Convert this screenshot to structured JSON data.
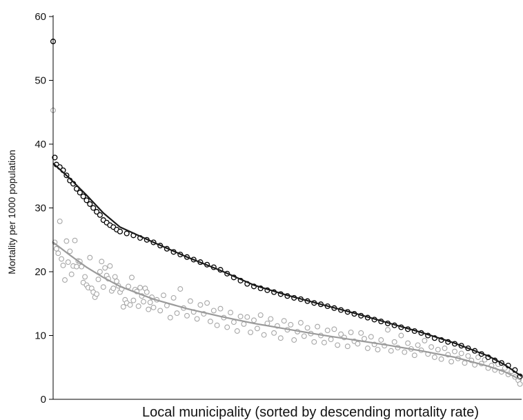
{
  "chart_data": {
    "type": "scatter",
    "title": "",
    "xlabel": "Local municipality (sorted by descending mortality rate)",
    "ylabel": "Mortality per 1000 population",
    "ylim": [
      0,
      60
    ],
    "yticks": [
      0,
      10,
      20,
      30,
      40,
      50,
      60
    ],
    "ytick_labels": [
      "0",
      "10",
      "20",
      "30",
      "40",
      "50",
      "60"
    ],
    "xlim": [
      0,
      280
    ],
    "grid": false,
    "legend": "none",
    "series": [
      {
        "marker": "open-circle",
        "color": "#000000",
        "points": [
          [
            0,
            56.1
          ],
          [
            1,
            37.9
          ],
          [
            2,
            36.8
          ],
          [
            4,
            36.4
          ],
          [
            6,
            35.9
          ],
          [
            8,
            35.1
          ],
          [
            10,
            34.3
          ],
          [
            12,
            33.8
          ],
          [
            14,
            33.0
          ],
          [
            16,
            32.4
          ],
          [
            18,
            31.8
          ],
          [
            20,
            31.2
          ],
          [
            22,
            30.6
          ],
          [
            24,
            30.0
          ],
          [
            26,
            29.4
          ],
          [
            28,
            28.9
          ],
          [
            30,
            28.1
          ],
          [
            32,
            27.7
          ],
          [
            34,
            27.3
          ],
          [
            36,
            27.0
          ],
          [
            38,
            26.6
          ],
          [
            40,
            26.3
          ],
          [
            44,
            26.0
          ],
          [
            48,
            25.7
          ],
          [
            52,
            25.3
          ],
          [
            56,
            25.0
          ],
          [
            60,
            24.6
          ],
          [
            64,
            24.1
          ],
          [
            68,
            23.6
          ],
          [
            72,
            23.1
          ],
          [
            76,
            22.7
          ],
          [
            80,
            22.3
          ],
          [
            84,
            21.9
          ],
          [
            88,
            21.5
          ],
          [
            92,
            21.1
          ],
          [
            96,
            20.7
          ],
          [
            100,
            20.3
          ],
          [
            104,
            19.7
          ],
          [
            108,
            19.1
          ],
          [
            112,
            18.6
          ],
          [
            116,
            18.1
          ],
          [
            120,
            17.7
          ],
          [
            124,
            17.4
          ],
          [
            128,
            17.1
          ],
          [
            132,
            16.8
          ],
          [
            136,
            16.5
          ],
          [
            140,
            16.2
          ],
          [
            144,
            15.9
          ],
          [
            148,
            15.7
          ],
          [
            152,
            15.4
          ],
          [
            156,
            15.1
          ],
          [
            160,
            14.9
          ],
          [
            164,
            14.6
          ],
          [
            168,
            14.3
          ],
          [
            172,
            14.0
          ],
          [
            176,
            13.7
          ],
          [
            180,
            13.4
          ],
          [
            184,
            13.1
          ],
          [
            188,
            12.8
          ],
          [
            192,
            12.5
          ],
          [
            196,
            12.2
          ],
          [
            200,
            11.9
          ],
          [
            204,
            11.6
          ],
          [
            208,
            11.3
          ],
          [
            212,
            11.0
          ],
          [
            216,
            10.7
          ],
          [
            220,
            10.4
          ],
          [
            224,
            10.0
          ],
          [
            228,
            9.6
          ],
          [
            232,
            9.3
          ],
          [
            236,
            9.0
          ],
          [
            240,
            8.7
          ],
          [
            244,
            8.4
          ],
          [
            248,
            8.0
          ],
          [
            252,
            7.6
          ],
          [
            256,
            7.1
          ],
          [
            260,
            6.6
          ],
          [
            264,
            6.1
          ],
          [
            268,
            5.7
          ],
          [
            272,
            5.3
          ],
          [
            276,
            4.6
          ],
          [
            279,
            3.6
          ]
        ],
        "trend": [
          [
            0,
            37.0
          ],
          [
            10,
            34.6
          ],
          [
            20,
            32.0
          ],
          [
            30,
            29.2
          ],
          [
            40,
            27.0
          ],
          [
            50,
            25.8
          ],
          [
            60,
            24.6
          ],
          [
            80,
            22.3
          ],
          [
            100,
            20.2
          ],
          [
            120,
            17.9
          ],
          [
            140,
            16.3
          ],
          [
            160,
            14.9
          ],
          [
            180,
            13.5
          ],
          [
            200,
            12.0
          ],
          [
            220,
            10.5
          ],
          [
            240,
            8.8
          ],
          [
            260,
            6.8
          ],
          [
            270,
            5.4
          ],
          [
            280,
            3.6
          ]
        ]
      },
      {
        "marker": "open-circle",
        "color": "#a6a6a6",
        "points": [
          [
            0,
            45.3
          ],
          [
            1,
            24.6
          ],
          [
            2,
            23.6
          ],
          [
            3,
            22.9
          ],
          [
            4,
            27.9
          ],
          [
            5,
            22.0
          ],
          [
            6,
            21.0
          ],
          [
            7,
            18.7
          ],
          [
            8,
            24.8
          ],
          [
            9,
            21.5
          ],
          [
            10,
            23.2
          ],
          [
            11,
            19.6
          ],
          [
            12,
            20.9
          ],
          [
            13,
            24.9
          ],
          [
            14,
            20.8
          ],
          [
            15,
            21.7
          ],
          [
            16,
            21.6
          ],
          [
            17,
            20.8
          ],
          [
            18,
            18.3
          ],
          [
            19,
            19.2
          ],
          [
            20,
            17.9
          ],
          [
            21,
            17.5
          ],
          [
            22,
            22.2
          ],
          [
            23,
            17.4
          ],
          [
            24,
            16.8
          ],
          [
            25,
            16.0
          ],
          [
            26,
            16.5
          ],
          [
            27,
            18.8
          ],
          [
            28,
            20.0
          ],
          [
            29,
            21.6
          ],
          [
            30,
            17.6
          ],
          [
            31,
            20.6
          ],
          [
            32,
            19.4
          ],
          [
            33,
            18.9
          ],
          [
            34,
            20.9
          ],
          [
            35,
            17.0
          ],
          [
            36,
            17.4
          ],
          [
            37,
            19.2
          ],
          [
            38,
            18.5
          ],
          [
            39,
            17.8
          ],
          [
            40,
            16.8
          ],
          [
            41,
            17.3
          ],
          [
            42,
            14.5
          ],
          [
            43,
            15.6
          ],
          [
            44,
            15.1
          ],
          [
            45,
            17.7
          ],
          [
            46,
            14.8
          ],
          [
            47,
            19.1
          ],
          [
            48,
            15.5
          ],
          [
            49,
            17.2
          ],
          [
            50,
            16.9
          ],
          [
            51,
            14.6
          ],
          [
            52,
            17.5
          ],
          [
            53,
            16.2
          ],
          [
            54,
            15.3
          ],
          [
            55,
            17.4
          ],
          [
            56,
            16.8
          ],
          [
            57,
            14.1
          ],
          [
            58,
            15.2
          ],
          [
            59,
            16.0
          ],
          [
            60,
            14.4
          ],
          [
            62,
            15.6
          ],
          [
            64,
            13.9
          ],
          [
            66,
            16.3
          ],
          [
            68,
            14.7
          ],
          [
            70,
            12.8
          ],
          [
            72,
            15.9
          ],
          [
            74,
            13.5
          ],
          [
            76,
            17.3
          ],
          [
            78,
            14.3
          ],
          [
            80,
            13.1
          ],
          [
            82,
            15.4
          ],
          [
            84,
            13.7
          ],
          [
            86,
            12.6
          ],
          [
            88,
            14.8
          ],
          [
            90,
            13.4
          ],
          [
            92,
            15.1
          ],
          [
            94,
            12.2
          ],
          [
            96,
            13.9
          ],
          [
            98,
            11.6
          ],
          [
            100,
            14.2
          ],
          [
            102,
            12.8
          ],
          [
            104,
            11.3
          ],
          [
            106,
            13.6
          ],
          [
            108,
            12.1
          ],
          [
            110,
            10.7
          ],
          [
            112,
            13.0
          ],
          [
            114,
            11.8
          ],
          [
            116,
            12.9
          ],
          [
            118,
            10.5
          ],
          [
            120,
            12.4
          ],
          [
            122,
            11.1
          ],
          [
            124,
            13.2
          ],
          [
            126,
            10.1
          ],
          [
            128,
            11.9
          ],
          [
            130,
            12.6
          ],
          [
            132,
            10.4
          ],
          [
            134,
            11.5
          ],
          [
            136,
            9.6
          ],
          [
            138,
            12.3
          ],
          [
            140,
            10.9
          ],
          [
            142,
            11.7
          ],
          [
            144,
            9.3
          ],
          [
            146,
            10.6
          ],
          [
            148,
            12.0
          ],
          [
            150,
            9.9
          ],
          [
            152,
            11.2
          ],
          [
            154,
            10.3
          ],
          [
            156,
            9.0
          ],
          [
            158,
            11.4
          ],
          [
            160,
            10.0
          ],
          [
            162,
            8.9
          ],
          [
            164,
            10.8
          ],
          [
            166,
            9.4
          ],
          [
            168,
            11.0
          ],
          [
            170,
            8.5
          ],
          [
            172,
            10.2
          ],
          [
            174,
            9.7
          ],
          [
            176,
            8.3
          ],
          [
            178,
            10.5
          ],
          [
            180,
            9.1
          ],
          [
            182,
            8.7
          ],
          [
            184,
            10.4
          ],
          [
            186,
            9.5
          ],
          [
            188,
            8.0
          ],
          [
            190,
            9.8
          ],
          [
            192,
            8.6
          ],
          [
            194,
            7.8
          ],
          [
            196,
            9.3
          ],
          [
            198,
            8.4
          ],
          [
            200,
            10.9
          ],
          [
            202,
            7.6
          ],
          [
            204,
            9.0
          ],
          [
            206,
            8.1
          ],
          [
            208,
            10.0
          ],
          [
            210,
            7.4
          ],
          [
            212,
            8.8
          ],
          [
            214,
            7.9
          ],
          [
            216,
            6.9
          ],
          [
            218,
            8.5
          ],
          [
            220,
            7.7
          ],
          [
            222,
            9.2
          ],
          [
            224,
            7.1
          ],
          [
            226,
            8.2
          ],
          [
            228,
            6.6
          ],
          [
            230,
            7.8
          ],
          [
            232,
            6.3
          ],
          [
            234,
            8.0
          ],
          [
            236,
            7.0
          ],
          [
            238,
            5.9
          ],
          [
            240,
            7.5
          ],
          [
            242,
            6.4
          ],
          [
            244,
            7.2
          ],
          [
            246,
            5.7
          ],
          [
            248,
            6.8
          ],
          [
            250,
            6.1
          ],
          [
            252,
            5.4
          ],
          [
            254,
            6.6
          ],
          [
            256,
            5.6
          ],
          [
            258,
            6.2
          ],
          [
            260,
            4.9
          ],
          [
            262,
            5.3
          ],
          [
            264,
            4.6
          ],
          [
            266,
            5.5
          ],
          [
            268,
            4.3
          ],
          [
            270,
            4.9
          ],
          [
            272,
            3.9
          ],
          [
            274,
            4.4
          ],
          [
            276,
            3.5
          ],
          [
            278,
            3.0
          ],
          [
            279,
            2.4
          ]
        ],
        "trend": [
          [
            0,
            24.6
          ],
          [
            10,
            22.6
          ],
          [
            20,
            20.7
          ],
          [
            30,
            19.1
          ],
          [
            40,
            17.7
          ],
          [
            60,
            15.7
          ],
          [
            80,
            14.2
          ],
          [
            100,
            13.0
          ],
          [
            120,
            11.9
          ],
          [
            140,
            11.0
          ],
          [
            160,
            10.1
          ],
          [
            180,
            9.3
          ],
          [
            200,
            8.5
          ],
          [
            220,
            7.6
          ],
          [
            240,
            6.6
          ],
          [
            260,
            5.2
          ],
          [
            270,
            4.3
          ],
          [
            280,
            3.0
          ]
        ]
      }
    ]
  }
}
